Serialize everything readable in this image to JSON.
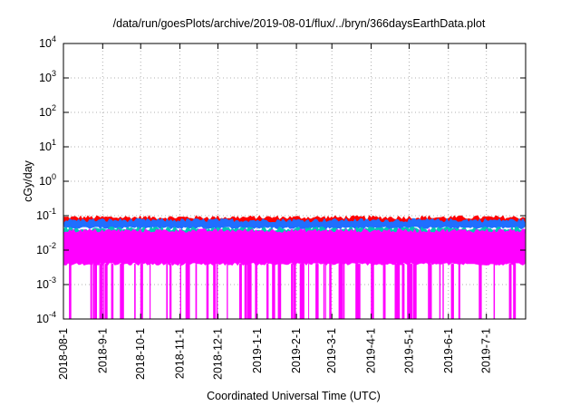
{
  "chart_data": {
    "type": "area",
    "title": "/data/run/goesPlots/archive/2019-08-01/flux/../bryn/366daysEarthData.plot",
    "xlabel": "Coordinated Universal Time (UTC)",
    "ylabel": "cGy/day",
    "yscale": "log",
    "ylim": [
      0.0001,
      10000
    ],
    "y_ticks": [
      {
        "value": 0.0001,
        "base": "10",
        "exp": "-4"
      },
      {
        "value": 0.001,
        "base": "10",
        "exp": "-3"
      },
      {
        "value": 0.01,
        "base": "10",
        "exp": "-2"
      },
      {
        "value": 0.1,
        "base": "10",
        "exp": "-1"
      },
      {
        "value": 1,
        "base": "10",
        "exp": "0"
      },
      {
        "value": 10,
        "base": "10",
        "exp": "1"
      },
      {
        "value": 100,
        "base": "10",
        "exp": "2"
      },
      {
        "value": 1000,
        "base": "10",
        "exp": "3"
      },
      {
        "value": 10000,
        "base": "10",
        "exp": "4"
      }
    ],
    "xlim": [
      "2018-08-01",
      "2019-08-01"
    ],
    "x_ticks": [
      "2018-08-1",
      "2018-9-1",
      "2018-10-1",
      "2018-11-1",
      "2018-12-1",
      "2019-1-1",
      "2019-2-1",
      "2019-3-1",
      "2019-4-1",
      "2019-5-1",
      "2019-6-1",
      "2019-7-1"
    ],
    "x_tick_dates": [
      "2018-08-01",
      "2018-09-01",
      "2018-10-01",
      "2018-11-01",
      "2018-12-01",
      "2019-01-01",
      "2019-02-01",
      "2019-03-01",
      "2019-04-01",
      "2019-05-01",
      "2019-06-01",
      "2019-07-01"
    ],
    "grid": true,
    "series": [
      {
        "color": "#ff0000",
        "typical_high": 0.085,
        "typical_low": 0.06
      },
      {
        "color": "#1f6fff",
        "typical_high": 0.07,
        "typical_low": 0.045
      },
      {
        "color": "#00c8b4",
        "typical_high": 0.04,
        "typical_low": 0.03
      },
      {
        "color": "#ff00ff",
        "typical_high": 0.035,
        "typical_low": 0.004,
        "dropouts_to": 0.0001
      }
    ]
  }
}
